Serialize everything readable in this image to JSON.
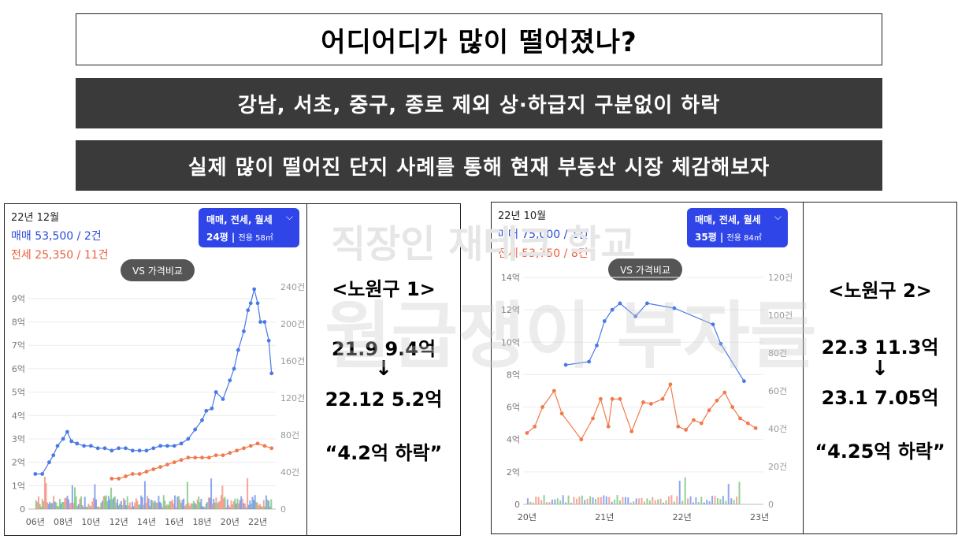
{
  "title": "어디어디가 많이 떨어졌나?",
  "banner1": "강남, 서초, 중구, 종로 제외 상·하급지 구분없이 하락",
  "banner2": "실제 많이 떨어진 단지 사례를 통해 현재 부동산 시장 체감해보자",
  "watermark": {
    "line1": "직장인 재테크 학교",
    "line2": "월급쟁이 부자들"
  },
  "colors": {
    "sale": "#4a78e6",
    "jeonse": "#f07a4c",
    "toggle": "#2f45e8",
    "banner": "#3a3a3a"
  },
  "panel1": {
    "date": "22년 12월",
    "sale": "매매 53,500 / 2건",
    "jeonse": "전세 25,350 / 11건",
    "toggle_line1": "매매, 전세, 월세",
    "toggle_size": "24평",
    "toggle_area": "전용 58㎡",
    "vs": "VS 가격비교",
    "info": {
      "name": "<노원구 1>",
      "from": "21.9 9.4억",
      "arrow": "↓",
      "to": "22.12 5.2억",
      "drop": "“4.2억 하락”"
    }
  },
  "panel2": {
    "date": "22년 10월",
    "sale": "매매 75,000 / 1건",
    "jeonse": "전세 53,750 / 8건",
    "toggle_line1": "매매, 전세, 월세",
    "toggle_size": "35평",
    "toggle_area": "전용 84㎡",
    "vs": "VS 가격비교",
    "info": {
      "name": "<노원구 2>",
      "from": "22.3 11.3억",
      "arrow": "↓",
      "to": "23.1 7.05억",
      "drop": "“4.25억 하락”"
    }
  },
  "chart_data": [
    {
      "type": "line",
      "y_left_ticks": [
        "0",
        "1억",
        "2억",
        "3억",
        "4억",
        "5억",
        "6억",
        "7억",
        "8억",
        "9억"
      ],
      "y_left_lim": [
        0,
        9.5
      ],
      "y_right_ticks": [
        "0",
        "40건",
        "80건",
        "120건",
        "160건",
        "200건",
        "240건"
      ],
      "y_right_lim": [
        0,
        240
      ],
      "x_ticks": [
        "06년",
        "08년",
        "10년",
        "12년",
        "14년",
        "16년",
        "18년",
        "20년",
        "22년"
      ],
      "x_tick_years": [
        2006,
        2008,
        2010,
        2012,
        2014,
        2016,
        2018,
        2020,
        2022
      ],
      "x_lim": [
        2005.5,
        2023.3
      ],
      "grid": true,
      "series": [
        {
          "name": "매매",
          "color": "#4a78e6",
          "x": [
            2006.0,
            2006.5,
            2007.0,
            2007.3,
            2007.6,
            2008.0,
            2008.3,
            2008.6,
            2009.0,
            2009.5,
            2010.0,
            2010.5,
            2011.0,
            2011.5,
            2012.0,
            2012.5,
            2013.0,
            2013.5,
            2014.0,
            2014.5,
            2015.0,
            2015.5,
            2016.0,
            2016.5,
            2017.0,
            2017.5,
            2018.0,
            2018.3,
            2018.7,
            2019.0,
            2019.5,
            2020.0,
            2020.3,
            2020.6,
            2021.0,
            2021.3,
            2021.5,
            2021.75,
            2022.0,
            2022.2,
            2022.5,
            2022.8,
            2023.0
          ],
          "y": [
            1.5,
            1.5,
            2.0,
            2.3,
            2.7,
            3.0,
            3.3,
            2.9,
            2.8,
            2.7,
            2.7,
            2.6,
            2.6,
            2.5,
            2.6,
            2.6,
            2.5,
            2.5,
            2.5,
            2.6,
            2.7,
            2.7,
            2.7,
            2.8,
            3.0,
            3.4,
            3.8,
            4.2,
            4.3,
            5.0,
            4.7,
            5.5,
            6.0,
            6.8,
            7.6,
            8.5,
            8.8,
            9.4,
            8.8,
            8.0,
            8.0,
            7.2,
            5.8
          ]
        },
        {
          "name": "전세",
          "color": "#f07a4c",
          "x": [
            2011.5,
            2012.0,
            2012.5,
            2013.0,
            2013.5,
            2014.0,
            2014.5,
            2015.0,
            2015.5,
            2016.0,
            2016.5,
            2017.0,
            2017.5,
            2018.0,
            2018.5,
            2019.0,
            2019.5,
            2020.0,
            2020.5,
            2021.0,
            2021.5,
            2022.0,
            2022.5,
            2023.0
          ],
          "y": [
            1.3,
            1.3,
            1.4,
            1.5,
            1.5,
            1.6,
            1.7,
            1.8,
            1.9,
            2.0,
            2.1,
            2.2,
            2.2,
            2.2,
            2.2,
            2.3,
            2.3,
            2.4,
            2.5,
            2.6,
            2.7,
            2.8,
            2.7,
            2.6
          ]
        }
      ]
    },
    {
      "type": "line",
      "y_left_ticks": [
        "0",
        "2억",
        "4억",
        "6억",
        "8억",
        "10억",
        "12억",
        "14억"
      ],
      "y_left_lim": [
        0,
        14
      ],
      "y_right_ticks": [
        "0",
        "20건",
        "40건",
        "60건",
        "80건",
        "100건",
        "120건"
      ],
      "y_right_lim": [
        0,
        120
      ],
      "x_ticks": [
        "20년",
        "21년",
        "22년",
        "23년"
      ],
      "x_tick_years": [
        2020,
        2021,
        2022,
        2023
      ],
      "x_lim": [
        2019.95,
        2023.05
      ],
      "grid": true,
      "series": [
        {
          "name": "매매",
          "color": "#4a78e6",
          "x": [
            2020.5,
            2020.8,
            2020.9,
            2021.0,
            2021.1,
            2021.2,
            2021.4,
            2021.55,
            2021.9,
            2022.4,
            2022.5,
            2022.8
          ],
          "y": [
            8.6,
            8.8,
            9.8,
            11.3,
            12.0,
            12.4,
            11.6,
            12.4,
            12.1,
            11.1,
            9.9,
            7.6
          ]
        },
        {
          "name": "전세",
          "color": "#f07a4c",
          "x": [
            2020.0,
            2020.1,
            2020.2,
            2020.35,
            2020.45,
            2020.7,
            2020.85,
            2020.95,
            2021.05,
            2021.1,
            2021.2,
            2021.35,
            2021.5,
            2021.6,
            2021.75,
            2021.85,
            2021.95,
            2022.05,
            2022.15,
            2022.25,
            2022.35,
            2022.45,
            2022.55,
            2022.65,
            2022.75,
            2022.85,
            2022.95
          ],
          "y": [
            4.4,
            4.8,
            6.0,
            7.0,
            5.6,
            4.0,
            5.3,
            6.5,
            4.8,
            6.5,
            6.5,
            4.5,
            6.3,
            6.2,
            6.5,
            7.4,
            4.8,
            4.6,
            5.2,
            5.0,
            5.8,
            6.4,
            6.9,
            6.0,
            5.3,
            5.0,
            4.7
          ]
        }
      ]
    }
  ]
}
